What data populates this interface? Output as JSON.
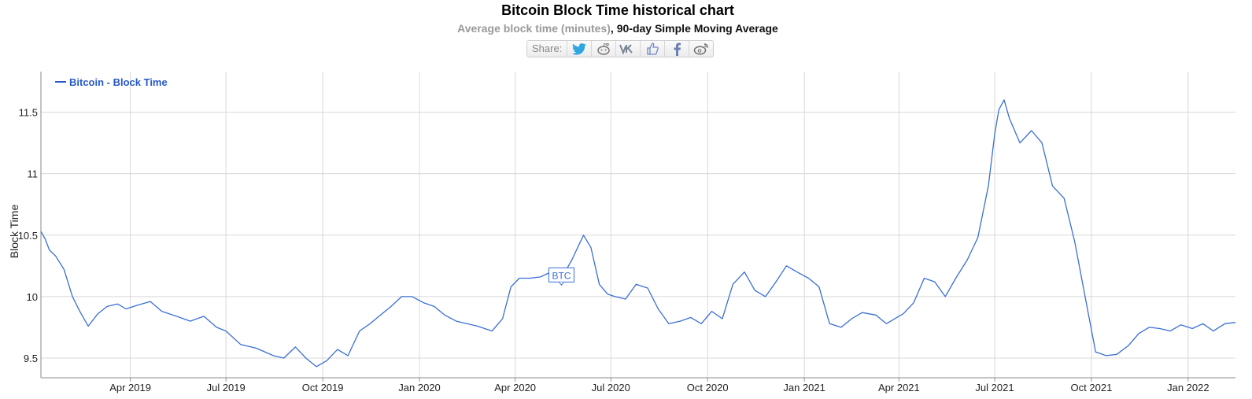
{
  "header": {
    "title": "Bitcoin Block Time historical chart",
    "subtitle_metric": "Average block time (minutes)",
    "subtitle_sep": ", ",
    "subtitle_avg": "90-day Simple Moving Average"
  },
  "share": {
    "label": "Share:",
    "buttons": [
      "twitter-icon",
      "reddit-icon",
      "vk-icon",
      "like-icon",
      "facebook-icon",
      "weibo-icon"
    ]
  },
  "colors": {
    "line": "#3a6fd4",
    "grid": "#d8d8d8",
    "legend": "#2759c7",
    "axis": "#222222"
  },
  "chart_data": {
    "type": "line",
    "title": "Bitcoin Block Time historical chart",
    "ylabel": "Block Time",
    "ylim": [
      9.34,
      11.83
    ],
    "xlim": [
      "2019-01-06",
      "2022-02-15"
    ],
    "yticks": [
      9.5,
      10,
      10.5,
      11,
      11.5
    ],
    "ytick_labels": [
      "9.5",
      "10",
      "10.5",
      "11",
      "11.5"
    ],
    "xticks": [
      "2019-04-01",
      "2019-07-01",
      "2019-10-01",
      "2020-01-01",
      "2020-04-01",
      "2020-07-01",
      "2020-10-01",
      "2021-01-01",
      "2021-04-01",
      "2021-07-01",
      "2021-10-01",
      "2022-01-01"
    ],
    "xtick_labels": [
      "Apr 2019",
      "Jul 2019",
      "Oct 2019",
      "Jan 2020",
      "Apr 2020",
      "Jul 2020",
      "Oct 2020",
      "Jan 2021",
      "Apr 2021",
      "Jul 2021",
      "Oct 2021",
      "Jan 2022"
    ],
    "grid": true,
    "legend_position": "top-left",
    "annotation": {
      "text": "BTC",
      "x": "2020-05-15",
      "y": 10.17
    },
    "series": [
      {
        "name": "Bitcoin - Block Time",
        "x": [
          "2019-01-06",
          "2019-01-10",
          "2019-01-14",
          "2019-01-20",
          "2019-01-28",
          "2019-02-05",
          "2019-02-12",
          "2019-02-20",
          "2019-03-01",
          "2019-03-10",
          "2019-03-20",
          "2019-03-28",
          "2019-04-08",
          "2019-04-20",
          "2019-05-01",
          "2019-05-15",
          "2019-05-28",
          "2019-06-10",
          "2019-06-22",
          "2019-07-01",
          "2019-07-15",
          "2019-07-30",
          "2019-08-15",
          "2019-08-25",
          "2019-09-05",
          "2019-09-15",
          "2019-09-25",
          "2019-10-05",
          "2019-10-15",
          "2019-10-25",
          "2019-11-05",
          "2019-11-15",
          "2019-11-25",
          "2019-12-05",
          "2019-12-15",
          "2019-12-25",
          "2020-01-05",
          "2020-01-15",
          "2020-01-25",
          "2020-02-05",
          "2020-02-15",
          "2020-02-25",
          "2020-03-10",
          "2020-03-20",
          "2020-03-28",
          "2020-04-05",
          "2020-04-15",
          "2020-04-25",
          "2020-05-05",
          "2020-05-15",
          "2020-05-25",
          "2020-06-05",
          "2020-06-12",
          "2020-06-20",
          "2020-06-28",
          "2020-07-05",
          "2020-07-15",
          "2020-07-25",
          "2020-08-05",
          "2020-08-15",
          "2020-08-25",
          "2020-09-05",
          "2020-09-15",
          "2020-09-25",
          "2020-10-05",
          "2020-10-15",
          "2020-10-25",
          "2020-11-05",
          "2020-11-15",
          "2020-11-25",
          "2020-12-05",
          "2020-12-15",
          "2020-12-25",
          "2021-01-05",
          "2021-01-15",
          "2021-01-25",
          "2021-02-05",
          "2021-02-15",
          "2021-02-25",
          "2021-03-10",
          "2021-03-20",
          "2021-03-30",
          "2021-04-05",
          "2021-04-15",
          "2021-04-25",
          "2021-05-05",
          "2021-05-15",
          "2021-05-25",
          "2021-06-05",
          "2021-06-15",
          "2021-06-25",
          "2021-07-01",
          "2021-07-05",
          "2021-07-10",
          "2021-07-15",
          "2021-07-25",
          "2021-08-05",
          "2021-08-15",
          "2021-08-25",
          "2021-09-05",
          "2021-09-15",
          "2021-09-25",
          "2021-10-05",
          "2021-10-15",
          "2021-10-25",
          "2021-11-05",
          "2021-11-15",
          "2021-11-25",
          "2021-12-05",
          "2021-12-15",
          "2021-12-25",
          "2022-01-05",
          "2022-01-15",
          "2022-01-25",
          "2022-02-05",
          "2022-02-15"
        ],
        "y": [
          10.53,
          10.47,
          10.38,
          10.33,
          10.22,
          10.0,
          9.88,
          9.76,
          9.86,
          9.92,
          9.94,
          9.9,
          9.93,
          9.96,
          9.88,
          9.84,
          9.8,
          9.84,
          9.75,
          9.72,
          9.61,
          9.58,
          9.52,
          9.5,
          9.59,
          9.5,
          9.43,
          9.48,
          9.57,
          9.52,
          9.72,
          9.78,
          9.85,
          9.92,
          10.0,
          10.0,
          9.95,
          9.92,
          9.85,
          9.8,
          9.78,
          9.76,
          9.72,
          9.82,
          10.08,
          10.15,
          10.15,
          10.16,
          10.2,
          10.15,
          10.3,
          10.5,
          10.4,
          10.1,
          10.02,
          10.0,
          9.98,
          10.1,
          10.07,
          9.9,
          9.78,
          9.8,
          9.83,
          9.78,
          9.88,
          9.82,
          10.1,
          10.2,
          10.05,
          10.0,
          10.12,
          10.25,
          10.2,
          10.15,
          10.08,
          9.78,
          9.75,
          9.82,
          9.87,
          9.85,
          9.78,
          9.83,
          9.86,
          9.95,
          10.15,
          10.12,
          10.0,
          10.15,
          10.3,
          10.48,
          10.9,
          11.32,
          11.52,
          11.6,
          11.45,
          11.25,
          11.35,
          11.25,
          10.9,
          10.8,
          10.45,
          10.0,
          9.55,
          9.52,
          9.53,
          9.6,
          9.7,
          9.75,
          9.74,
          9.72,
          9.77,
          9.74,
          9.78,
          9.72,
          9.78,
          9.79
        ]
      }
    ]
  }
}
